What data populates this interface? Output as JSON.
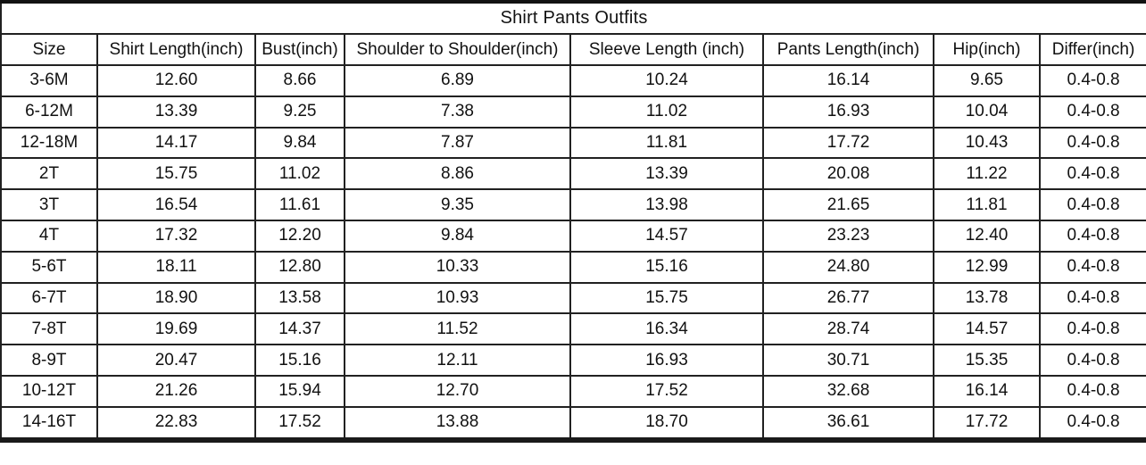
{
  "table": {
    "title": "Shirt Pants Outfits",
    "columns": [
      "Size",
      "Shirt Length(inch)",
      "Bust(inch)",
      "Shoulder to Shoulder(inch)",
      "Sleeve Length (inch)",
      "Pants Length(inch)",
      "Hip(inch)",
      "Differ(inch)"
    ],
    "rows": [
      [
        "3-6M",
        "12.60",
        "8.66",
        "6.89",
        "10.24",
        "16.14",
        "9.65",
        "0.4-0.8"
      ],
      [
        "6-12M",
        "13.39",
        "9.25",
        "7.38",
        "11.02",
        "16.93",
        "10.04",
        "0.4-0.8"
      ],
      [
        "12-18M",
        "14.17",
        "9.84",
        "7.87",
        "11.81",
        "17.72",
        "10.43",
        "0.4-0.8"
      ],
      [
        "2T",
        "15.75",
        "11.02",
        "8.86",
        "13.39",
        "20.08",
        "11.22",
        "0.4-0.8"
      ],
      [
        "3T",
        "16.54",
        "11.61",
        "9.35",
        "13.98",
        "21.65",
        "11.81",
        "0.4-0.8"
      ],
      [
        "4T",
        "17.32",
        "12.20",
        "9.84",
        "14.57",
        "23.23",
        "12.40",
        "0.4-0.8"
      ],
      [
        "5-6T",
        "18.11",
        "12.80",
        "10.33",
        "15.16",
        "24.80",
        "12.99",
        "0.4-0.8"
      ],
      [
        "6-7T",
        "18.90",
        "13.58",
        "10.93",
        "15.75",
        "26.77",
        "13.78",
        "0.4-0.8"
      ],
      [
        "7-8T",
        "19.69",
        "14.37",
        "11.52",
        "16.34",
        "28.74",
        "14.57",
        "0.4-0.8"
      ],
      [
        "8-9T",
        "20.47",
        "15.16",
        "12.11",
        "16.93",
        "30.71",
        "15.35",
        "0.4-0.8"
      ],
      [
        "10-12T",
        "21.26",
        "15.94",
        "12.70",
        "17.52",
        "32.68",
        "16.14",
        "0.4-0.8"
      ],
      [
        "14-16T",
        "22.83",
        "17.52",
        "13.88",
        "18.70",
        "36.61",
        "17.72",
        "0.4-0.8"
      ]
    ]
  },
  "colors": {
    "background": "#ffffff",
    "text": "#111111",
    "border": "#212121"
  }
}
